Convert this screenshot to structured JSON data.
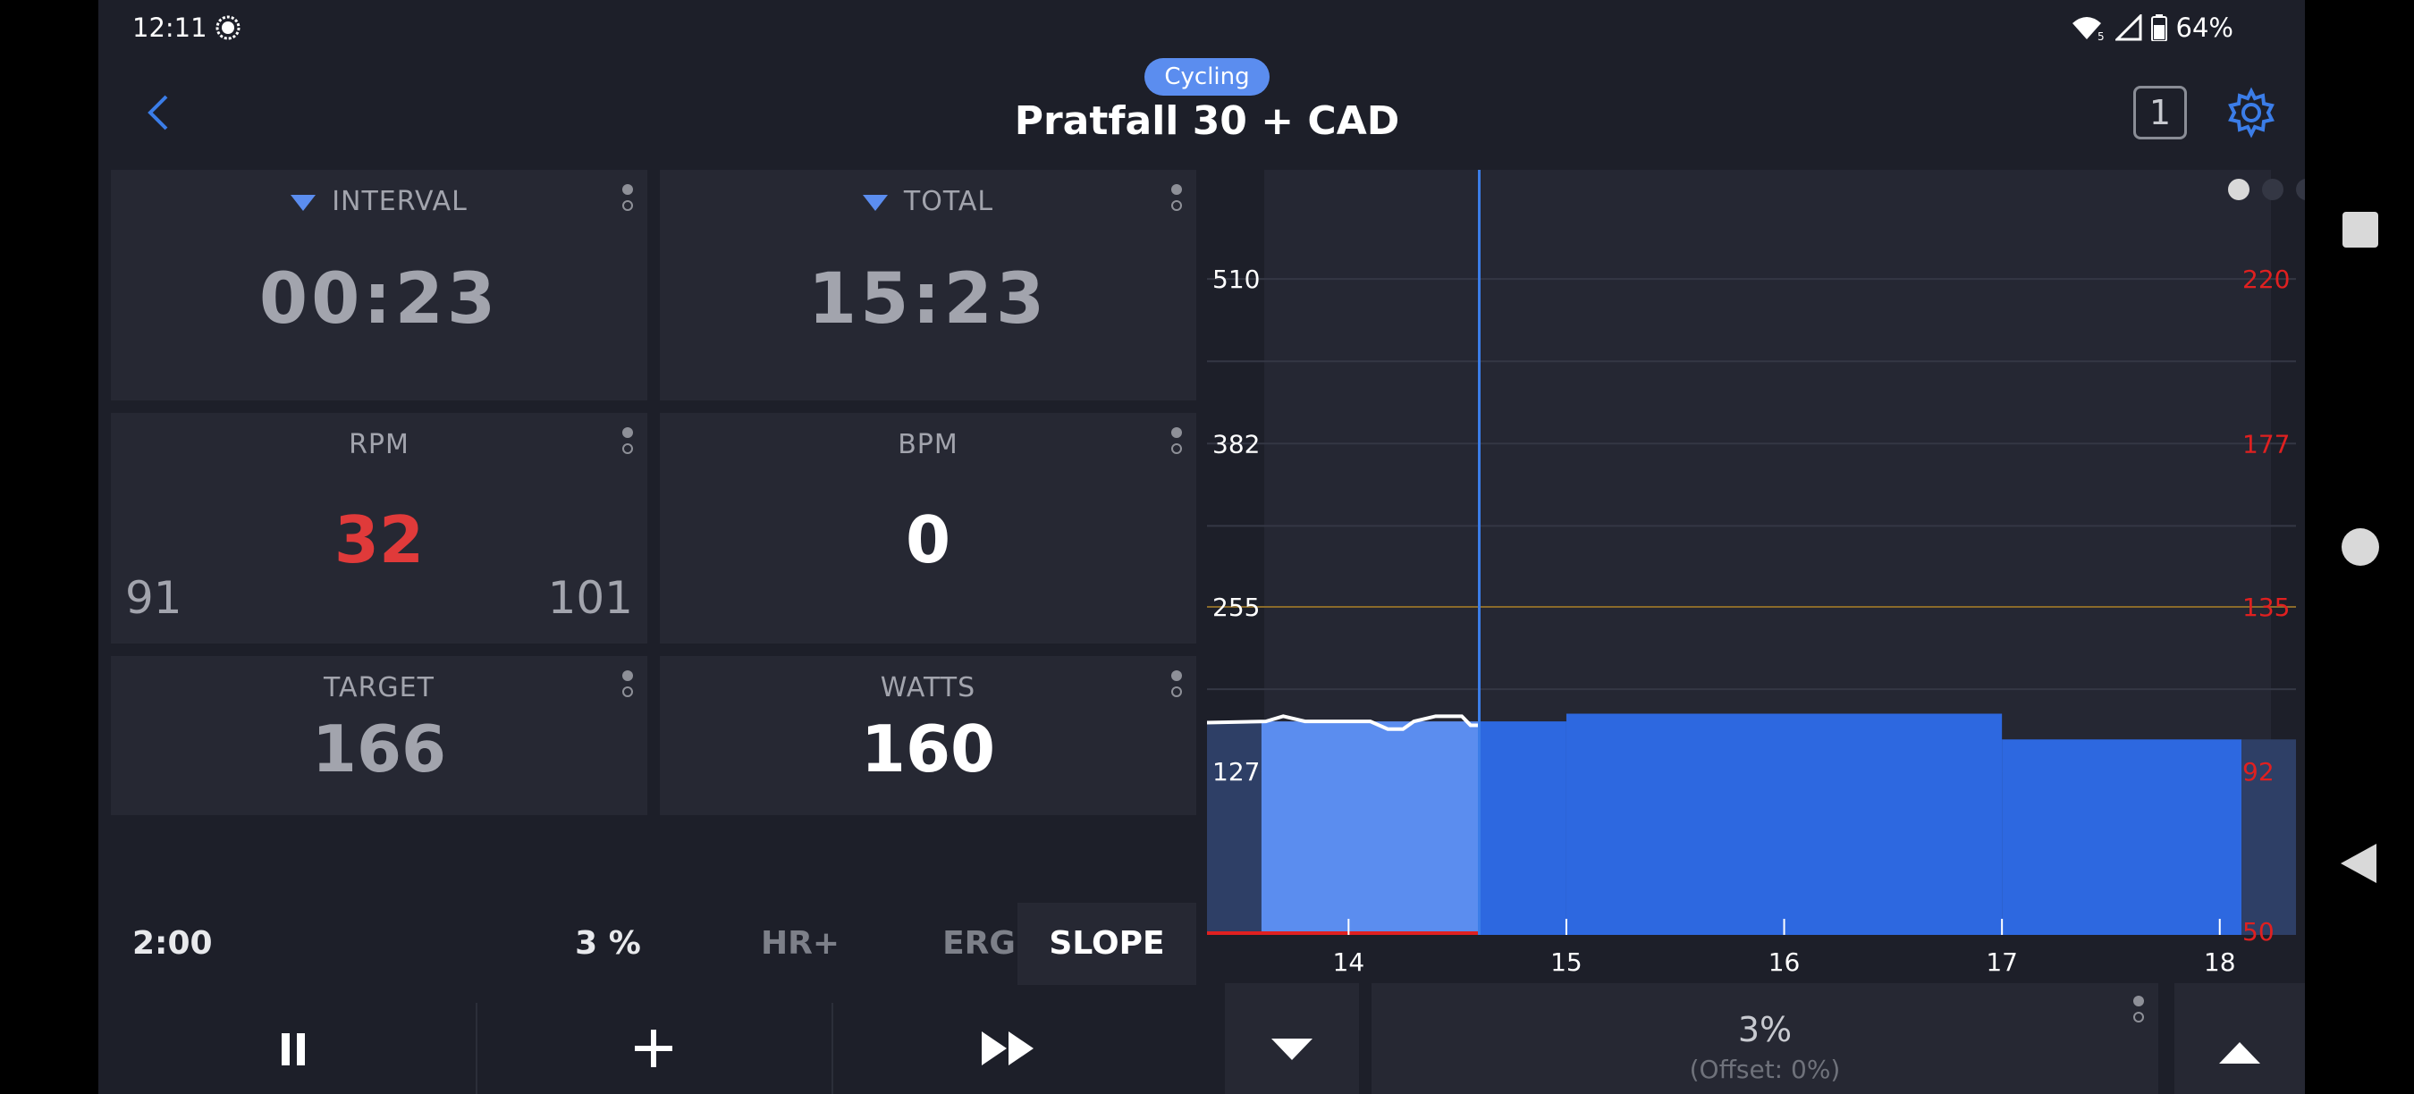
{
  "status": {
    "time": "12:11",
    "battery": "64%",
    "wifi_badge": "5"
  },
  "header": {
    "sport_pill": "Cycling",
    "title": "Pratfall 30 + CAD",
    "lap_count": "1"
  },
  "tiles": {
    "interval": {
      "label": "INTERVAL",
      "value": "00:23"
    },
    "total": {
      "label": "TOTAL",
      "value": "15:23"
    },
    "rpm": {
      "label": "RPM",
      "value": "32",
      "min": "91",
      "max": "101"
    },
    "bpm": {
      "label": "BPM",
      "value": "0"
    },
    "target": {
      "label": "TARGET",
      "value": "166"
    },
    "watts": {
      "label": "WATTS",
      "value": "160"
    }
  },
  "modebar": {
    "duration": "2:00",
    "grade": "3 %",
    "hr": "HR+",
    "erg": "ERG",
    "slope": "SLOPE",
    "active": "SLOPE"
  },
  "adjust": {
    "value": "3%",
    "offset": "(Offset: 0%)"
  },
  "colors": {
    "accent": "#5b8def",
    "bar": "#2d68e0",
    "bar_past": "#5b8def",
    "rpm_red": "#e03a3a",
    "axis_right": "#e02020",
    "ftp_line": "#8a6a2a"
  },
  "chart_data": {
    "type": "area",
    "x_ticks": [
      "14",
      "15",
      "16",
      "17",
      "18"
    ],
    "x_range": [
      13.35,
      18.35
    ],
    "current_x": 14.6,
    "y_left_ticks": [
      "510",
      "382",
      "255",
      "127"
    ],
    "y_left_range": [
      0,
      574
    ],
    "y_right_ticks": [
      "220",
      "177",
      "135",
      "92",
      "50"
    ],
    "ftp_line_value": 255,
    "segments": [
      {
        "x0": 13.35,
        "x1": 13.6,
        "y": 165,
        "style": "pre"
      },
      {
        "x0": 13.6,
        "x1": 14.6,
        "y": 166,
        "style": "past"
      },
      {
        "x0": 14.6,
        "x1": 15.0,
        "y": 166,
        "style": "future"
      },
      {
        "x0": 15.0,
        "x1": 17.0,
        "y": 172,
        "style": "future"
      },
      {
        "x0": 17.0,
        "x1": 18.1,
        "y": 152,
        "style": "future"
      },
      {
        "x0": 18.1,
        "x1": 18.35,
        "y": 152,
        "style": "post"
      }
    ],
    "power_trace": [
      [
        13.35,
        165
      ],
      [
        13.62,
        166
      ],
      [
        13.7,
        170
      ],
      [
        13.8,
        166
      ],
      [
        14.1,
        166
      ],
      [
        14.18,
        160
      ],
      [
        14.25,
        160
      ],
      [
        14.3,
        166
      ],
      [
        14.4,
        170
      ],
      [
        14.52,
        170
      ],
      [
        14.56,
        163
      ],
      [
        14.6,
        163
      ]
    ],
    "hr_trace": [
      [
        13.35,
        0
      ],
      [
        14.6,
        0
      ]
    ],
    "page_dots": 3,
    "page_active": 0
  }
}
